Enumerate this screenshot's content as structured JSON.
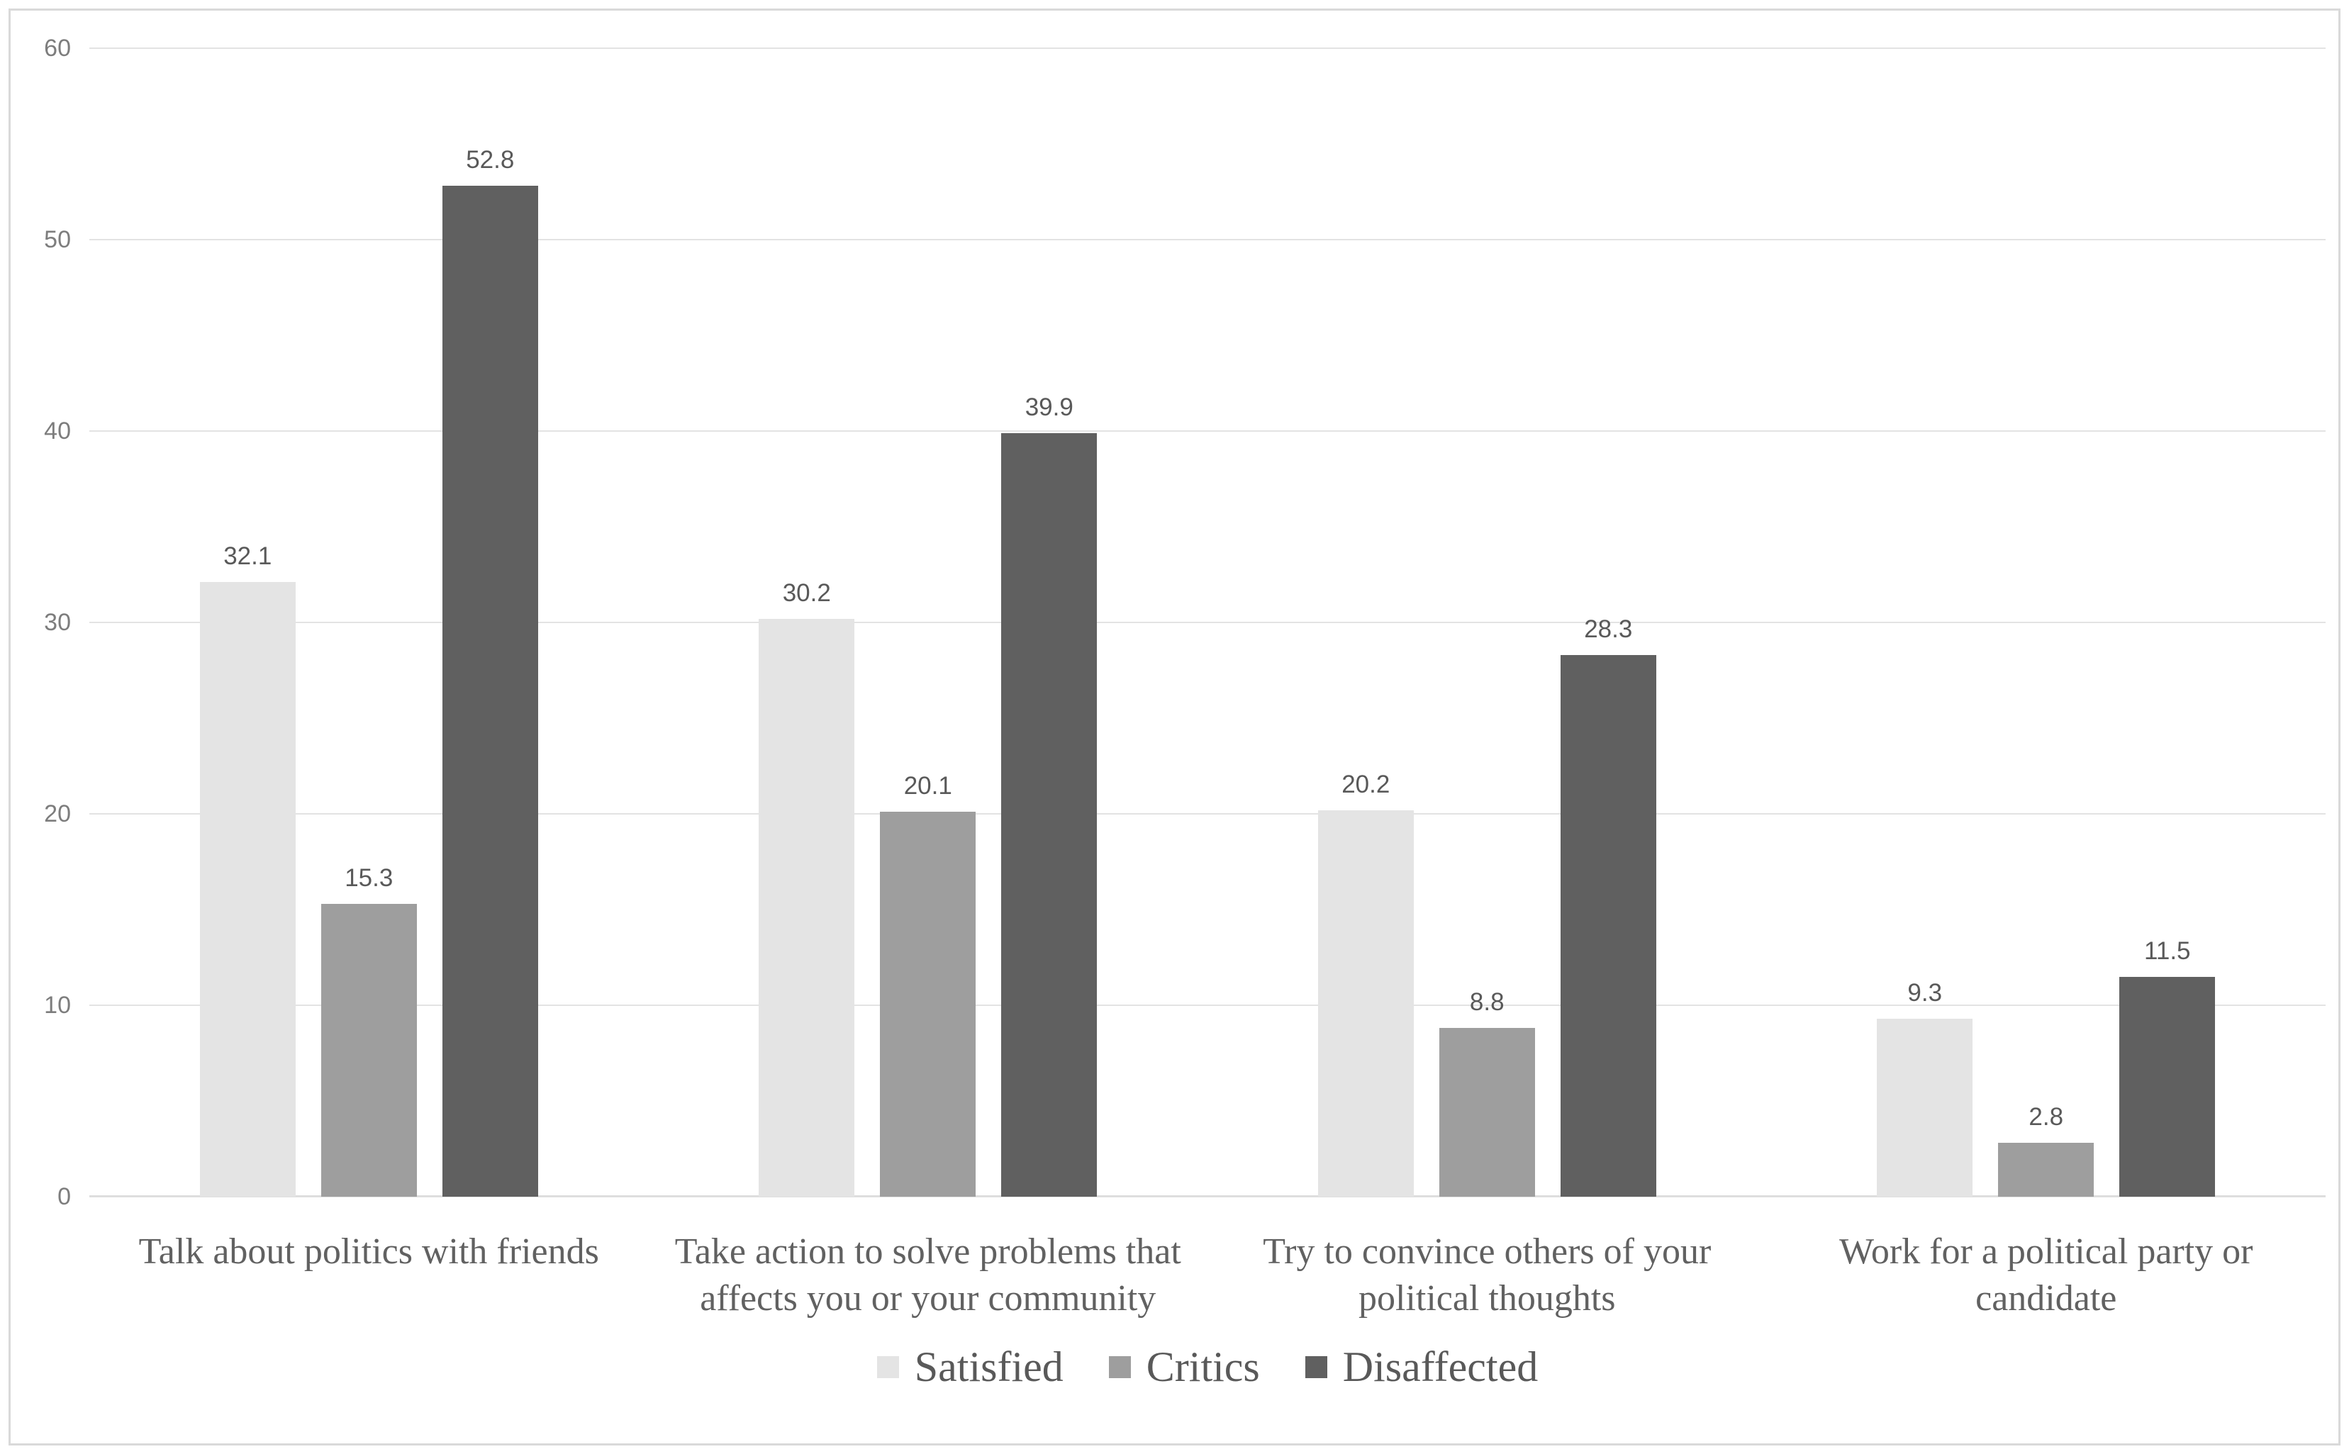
{
  "chart_data": {
    "type": "bar",
    "title": "",
    "categories": [
      "Talk about politics with friends",
      "Take action to solve problems that\naffects you or your community",
      "Try to convince others of your\npolitical thoughts",
      "Work for a political party or\ncandidate"
    ],
    "series": [
      {
        "name": "Satisfied",
        "color": "#e4e4e4",
        "values": [
          32.1,
          30.2,
          20.2,
          9.3
        ]
      },
      {
        "name": "Critics",
        "color": "#9e9e9e",
        "values": [
          15.3,
          20.1,
          8.8,
          2.8
        ]
      },
      {
        "name": "Disaffected",
        "color": "#606060",
        "values": [
          52.8,
          39.9,
          28.3,
          11.5
        ]
      }
    ],
    "data_labels": [
      [
        "32.1",
        "30.2",
        "20.2",
        "9.3"
      ],
      [
        "15.3",
        "20.1",
        "8.8",
        "2.8"
      ],
      [
        "52.8",
        "39.9",
        "28.3",
        "11.5"
      ]
    ],
    "ylabel": "",
    "xlabel": "",
    "ylim": [
      0,
      60
    ],
    "yticks": [
      "0",
      "10",
      "20",
      "30",
      "40",
      "50",
      "60"
    ],
    "grid": true,
    "legend_position": "bottom",
    "legend_entries": [
      "Satisfied",
      "Critics",
      "Disaffected"
    ]
  },
  "style": {
    "background": "#ffffff",
    "frame_border": "#d9d9d9",
    "gridline": "#e3e3e3",
    "axis_line": "#dedede",
    "tick_label_color": "#7d7d7d",
    "data_label_color": "#595959",
    "category_label_color": "#616161",
    "legend_label_color": "#595959"
  }
}
